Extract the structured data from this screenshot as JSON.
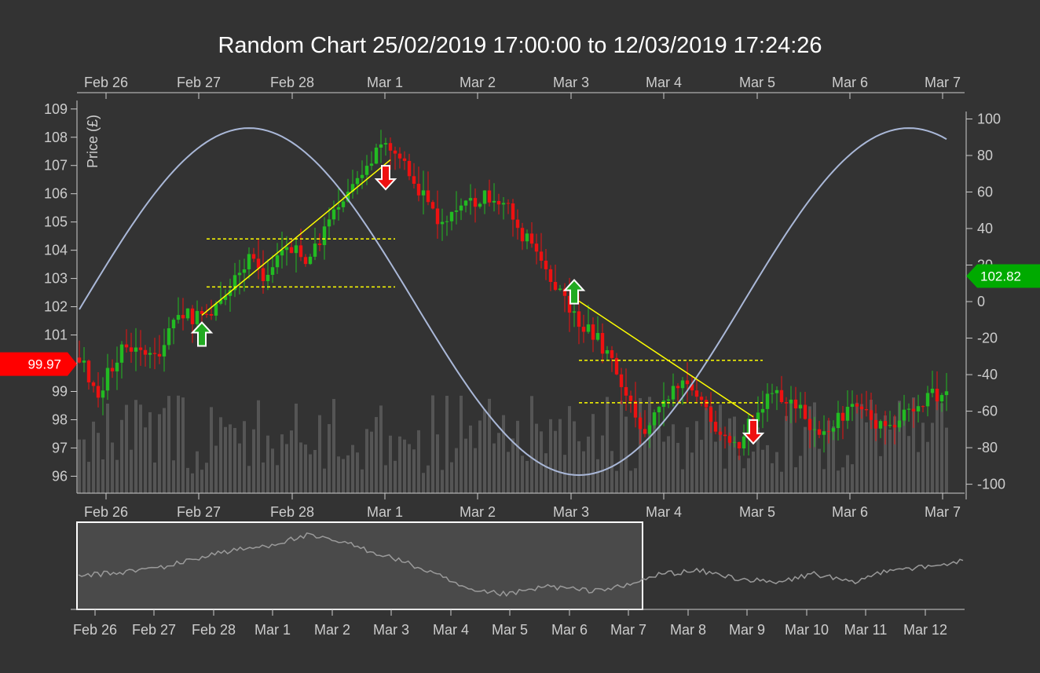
{
  "chart_data": {
    "type": "candlestick",
    "title": "Random Chart 25/02/2019 17:00:00 to 12/03/2019 17:24:26",
    "ylabel_left": "Price (£)",
    "y_left": {
      "ticks": [
        96,
        97,
        98,
        99,
        100,
        101,
        102,
        103,
        104,
        105,
        106,
        107,
        108,
        109
      ],
      "range": [
        95.4,
        109.3
      ]
    },
    "y_right": {
      "ticks": [
        100,
        80,
        60,
        40,
        20,
        0,
        -20,
        -40,
        -60,
        -80,
        -100
      ],
      "range": [
        -104.9,
        110.1
      ]
    },
    "x_main": {
      "ticks": [
        "Feb 26",
        "Feb 27",
        "Feb 28",
        "Mar 1",
        "Mar 2",
        "Mar 3",
        "Mar 4",
        "Mar 5",
        "Mar 6",
        "Mar 7"
      ]
    },
    "x_navigator": {
      "ticks": [
        "Feb 26",
        "Feb 27",
        "Feb 28",
        "Mar 1",
        "Mar 2",
        "Mar 3",
        "Mar 4",
        "Mar 5",
        "Mar 6",
        "Mar 7",
        "Mar 8",
        "Mar 9",
        "Mar 10",
        "Mar 11",
        "Mar 12"
      ]
    },
    "price_trend": [
      [
        0,
        100.2
      ],
      [
        4,
        99.0
      ],
      [
        10,
        100.8
      ],
      [
        16,
        100.2
      ],
      [
        22,
        101.8
      ],
      [
        26,
        101.5
      ],
      [
        30,
        102.0
      ],
      [
        36,
        103.8
      ],
      [
        40,
        103.0
      ],
      [
        44,
        104.2
      ],
      [
        48,
        103.8
      ],
      [
        52,
        104.6
      ],
      [
        56,
        105.8
      ],
      [
        60,
        106.8
      ],
      [
        64,
        107.6
      ],
      [
        68,
        107.2
      ],
      [
        72,
        106.2
      ],
      [
        76,
        105.2
      ],
      [
        80,
        105.4
      ],
      [
        84,
        105.8
      ],
      [
        88,
        106.0
      ],
      [
        92,
        105.2
      ],
      [
        96,
        104.0
      ],
      [
        100,
        103.0
      ],
      [
        104,
        101.8
      ],
      [
        108,
        101.2
      ],
      [
        112,
        100.4
      ],
      [
        116,
        98.8
      ],
      [
        120,
        97.6
      ],
      [
        124,
        98.4
      ],
      [
        128,
        99.4
      ],
      [
        132,
        98.6
      ],
      [
        136,
        97.6
      ],
      [
        140,
        97.2
      ],
      [
        144,
        98.5
      ],
      [
        148,
        99.0
      ],
      [
        152,
        98.6
      ],
      [
        156,
        97.6
      ],
      [
        160,
        97.8
      ],
      [
        164,
        98.6
      ],
      [
        168,
        98.0
      ],
      [
        172,
        97.8
      ],
      [
        176,
        98.4
      ],
      [
        180,
        98.8
      ]
    ],
    "sine_overlay": {
      "amplitude": 95,
      "min_index": 106,
      "max_index": 36,
      "period": 140
    },
    "navigator_trend": [
      [
        0,
        100.2
      ],
      [
        14,
        100.8
      ],
      [
        28,
        101.8
      ],
      [
        44,
        104.0
      ],
      [
        58,
        105.0
      ],
      [
        72,
        106.8
      ],
      [
        84,
        105.6
      ],
      [
        100,
        103.0
      ],
      [
        112,
        100.6
      ],
      [
        124,
        97.6
      ],
      [
        136,
        97.2
      ],
      [
        148,
        98.5
      ],
      [
        160,
        97.8
      ],
      [
        172,
        98.4
      ],
      [
        184,
        100.6
      ],
      [
        196,
        101.0
      ],
      [
        208,
        99.8
      ],
      [
        220,
        99.0
      ],
      [
        232,
        100.6
      ],
      [
        244,
        99.0
      ],
      [
        256,
        101.4
      ],
      [
        268,
        101.6
      ],
      [
        278,
        102.6
      ]
    ],
    "trendlines": [
      {
        "from": [
          26,
          101.7
        ],
        "to": [
          66,
          107.2
        ],
        "color": "#ffff00"
      },
      {
        "from": [
          106,
          102.2
        ],
        "to": [
          143,
          98.1
        ],
        "color": "#ffff00"
      }
    ],
    "horizontal_lines": [
      {
        "from": 27,
        "to": 67,
        "y": 104.4,
        "color": "#ffff00"
      },
      {
        "from": 27,
        "to": 67,
        "y": 102.7,
        "color": "#ffff00"
      },
      {
        "from": 106,
        "to": 145,
        "y": 100.1,
        "color": "#ffff00"
      },
      {
        "from": 106,
        "to": 145,
        "y": 98.6,
        "color": "#ffff00"
      }
    ],
    "markers": [
      {
        "type": "buy",
        "index": 26,
        "price": 101.0
      },
      {
        "type": "sell",
        "index": 65,
        "price": 106.6
      },
      {
        "type": "buy",
        "index": 105,
        "price": 102.5
      },
      {
        "type": "sell",
        "index": 143,
        "price": 97.6
      }
    ],
    "annotations": [
      {
        "label": "99.97",
        "axis": "left",
        "value": 99.97,
        "color": "#ff0000"
      },
      {
        "label": "102.82",
        "axis": "right",
        "value": 14,
        "color": "#00aa00"
      }
    ],
    "colors": {
      "up": "#22bb22",
      "down": "#ee1111",
      "volume": "#555555",
      "sine": "#aab8d8",
      "axis": "#cccccc",
      "background": "#333333",
      "navigator_window": "#4a4a4a",
      "navigator_border": "#ffffff"
    }
  }
}
